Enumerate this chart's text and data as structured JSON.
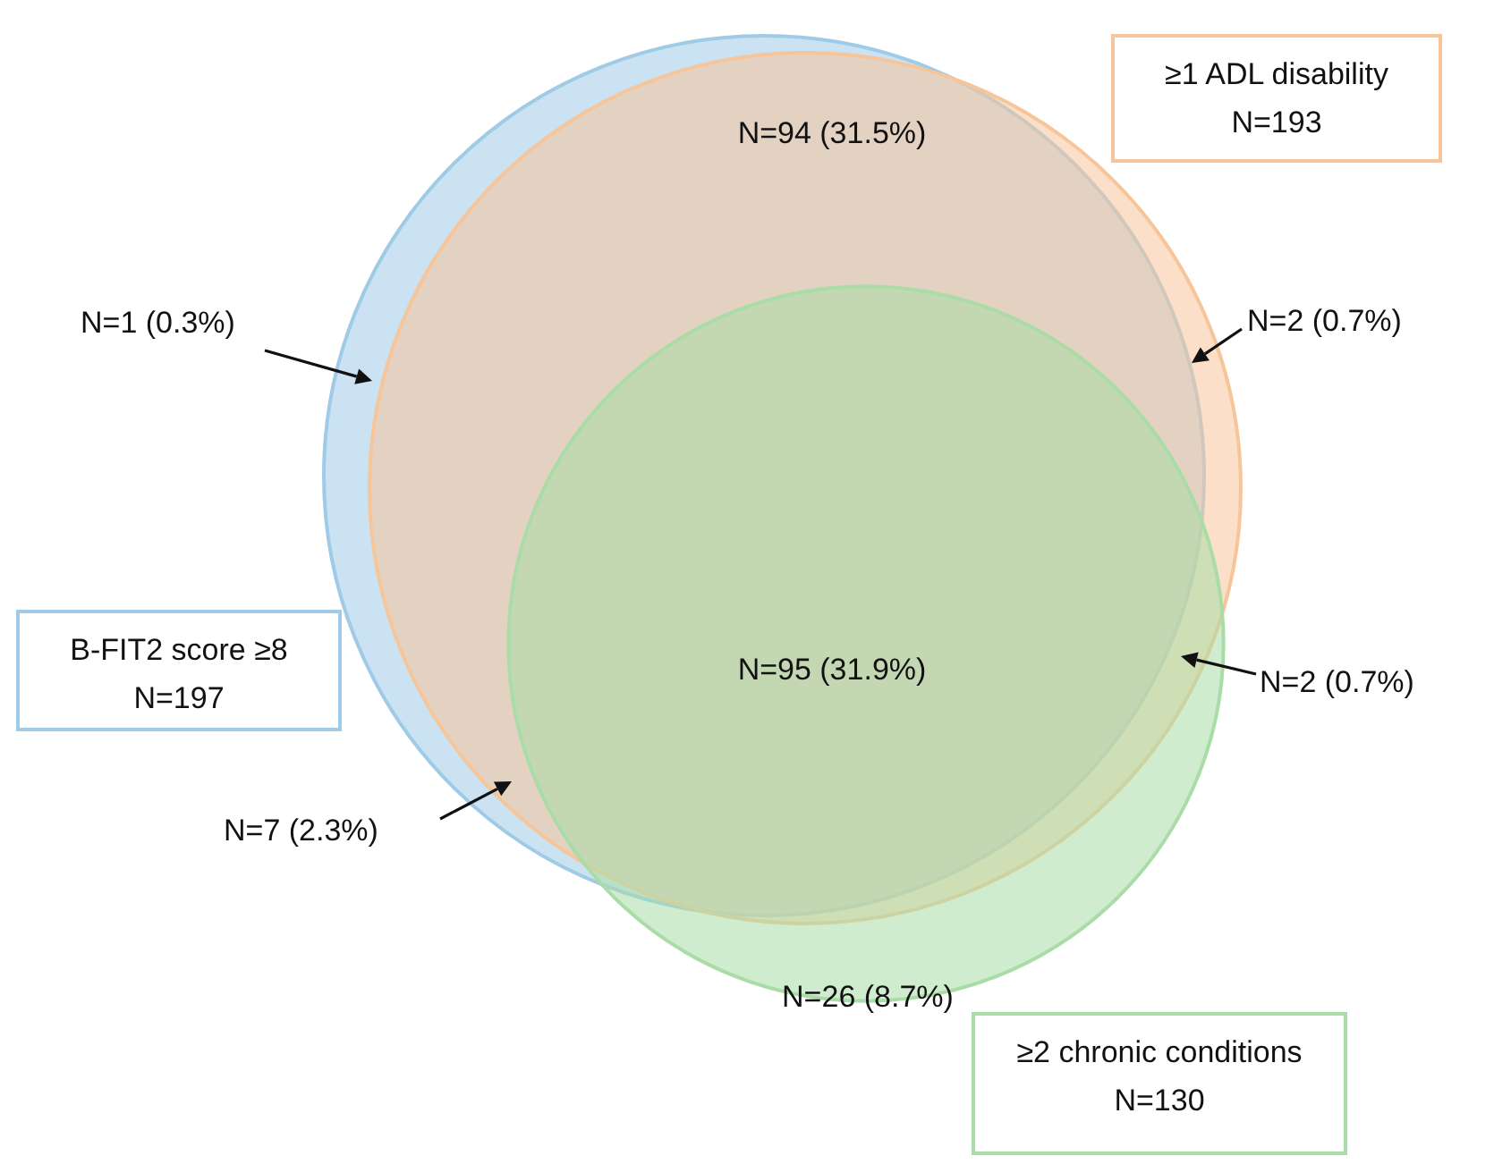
{
  "chart_data": {
    "type": "other",
    "categories": [
      "B-FIT2 score ≥8",
      "≥1 ADL disability",
      "≥2 chronic conditions"
    ],
    "values": [
      197,
      193,
      130
    ],
    "value_labels": [
      "N=197",
      "N=193",
      "N=130"
    ],
    "colors": [
      "#9fcbe6",
      "#f7c59a",
      "#a9dca6"
    ],
    "annotations": [
      "N=94 (31.5%)",
      "N=1 (0.3%)",
      "N=2 (0.7%)",
      "N=95 (31.9%)",
      "N=2 (0.7%)",
      "N=7 (2.3%)",
      "N=26 (8.7%)"
    ]
  }
}
